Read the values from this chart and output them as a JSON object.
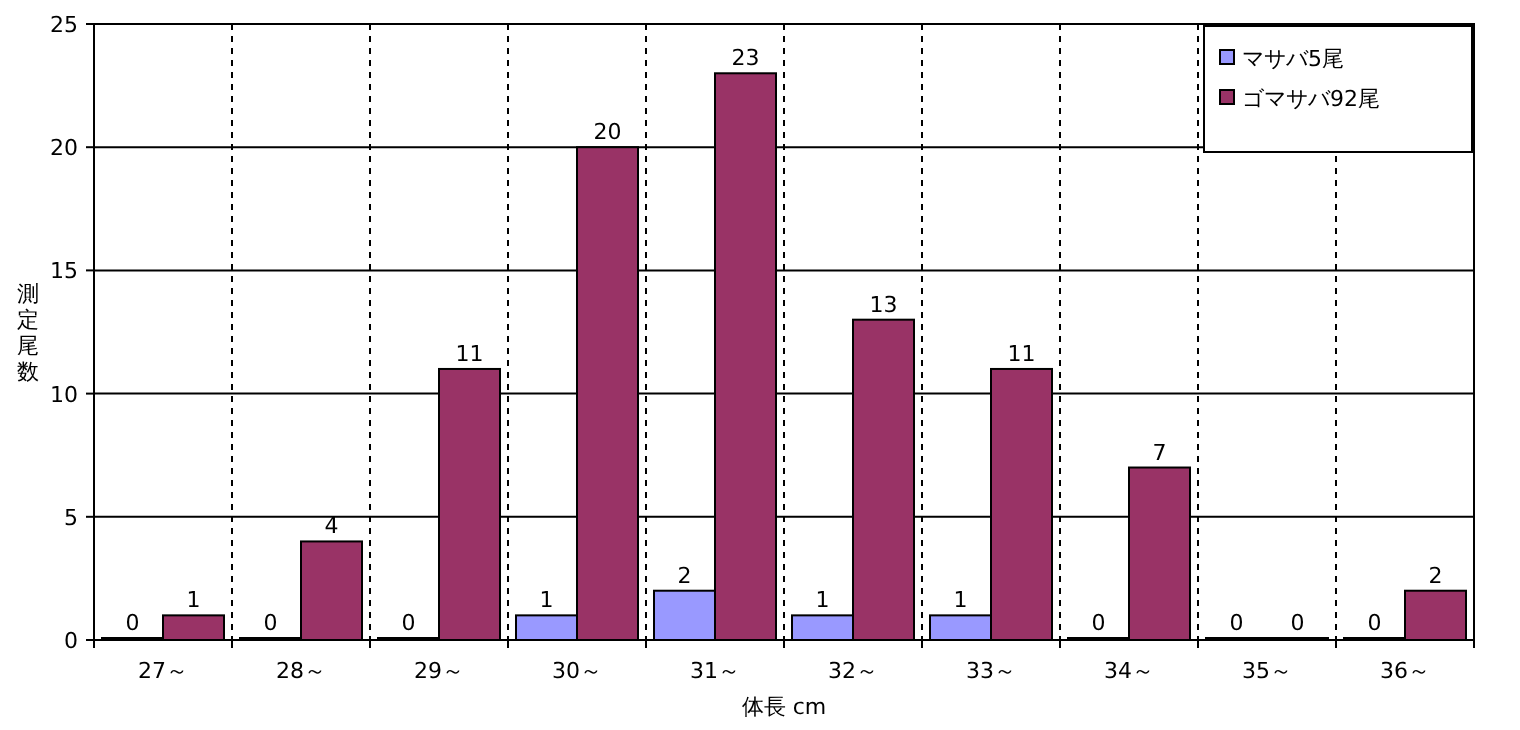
{
  "chart_data": {
    "type": "bar",
    "xlabel": "体長 cm",
    "ylabel": "測定尾数",
    "categories": [
      "27～",
      "28～",
      "29～",
      "30～",
      "31～",
      "32～",
      "33～",
      "34～",
      "35～",
      "36～"
    ],
    "series": [
      {
        "name": "マサバ5尾",
        "color": "#9999ff",
        "values": [
          0,
          0,
          0,
          1,
          2,
          1,
          1,
          0,
          0,
          0
        ]
      },
      {
        "name": "ゴマサバ92尾",
        "color": "#993366",
        "values": [
          1,
          4,
          11,
          20,
          23,
          13,
          11,
          7,
          0,
          2
        ]
      }
    ],
    "ylim": [
      0,
      25
    ],
    "yticks": [
      0,
      5,
      10,
      15,
      20,
      25
    ],
    "grid": true,
    "legend": "top right",
    "data_labels": true
  }
}
